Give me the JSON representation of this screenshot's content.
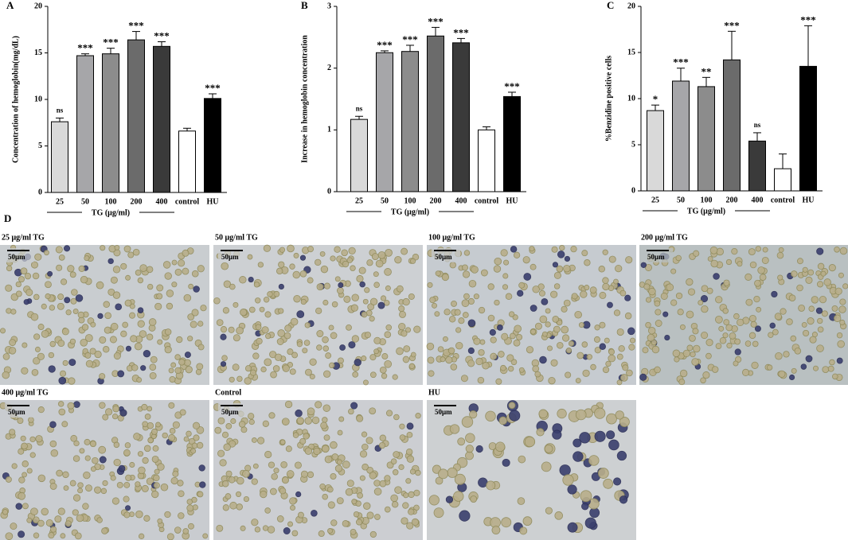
{
  "chart_data": [
    {
      "type": "bar",
      "panel_label": "A",
      "ylabel": "Concentration of hemoglobin(mg/dL)",
      "group_label": "TG (μg/ml)",
      "categories": [
        "25",
        "50",
        "100",
        "200",
        "400",
        "control",
        "HU"
      ],
      "values": [
        7.6,
        14.7,
        14.9,
        16.4,
        15.7,
        6.6,
        10.1
      ],
      "errors": [
        0.4,
        0.2,
        0.6,
        0.9,
        0.5,
        0.3,
        0.5
      ],
      "annotations": [
        "ns",
        "***",
        "***",
        "***",
        "***",
        null,
        "***"
      ],
      "colors": [
        "#d9d9d9",
        "#a6a6a9",
        "#8c8c8c",
        "#6b6b6b",
        "#3a3a3a",
        "#ffffff",
        "#000000"
      ],
      "ylim": [
        0,
        20
      ],
      "yticks": [
        0,
        5,
        10,
        15,
        20
      ]
    },
    {
      "type": "bar",
      "panel_label": "B",
      "ylabel": "Increase in hemoglobin concentration",
      "group_label": "TG (μg/ml)",
      "categories": [
        "25",
        "50",
        "100",
        "200",
        "400",
        "control",
        "HU"
      ],
      "values": [
        1.17,
        2.25,
        2.27,
        2.52,
        2.41,
        1.0,
        1.54
      ],
      "errors": [
        0.05,
        0.03,
        0.1,
        0.14,
        0.07,
        0.05,
        0.07
      ],
      "annotations": [
        "ns",
        "***",
        "***",
        "***",
        "***",
        null,
        "***"
      ],
      "colors": [
        "#d9d9d9",
        "#a6a6a9",
        "#8c8c8c",
        "#6b6b6b",
        "#3a3a3a",
        "#ffffff",
        "#000000"
      ],
      "ylim": [
        0,
        3
      ],
      "yticks": [
        0,
        1,
        2,
        3
      ]
    },
    {
      "type": "bar",
      "panel_label": "C",
      "ylabel": "%Benzidine positive cells",
      "group_label": "TG (μg/ml)",
      "categories": [
        "25",
        "50",
        "100",
        "200",
        "400",
        "control",
        "HU"
      ],
      "values": [
        8.7,
        11.9,
        11.3,
        14.2,
        5.4,
        2.4,
        13.5
      ],
      "errors": [
        0.6,
        1.4,
        1.0,
        3.1,
        0.9,
        1.6,
        4.4
      ],
      "annotations": [
        "*",
        "***",
        "**",
        "***",
        "ns",
        null,
        "***"
      ],
      "colors": [
        "#d9d9d9",
        "#a6a6a9",
        "#8c8c8c",
        "#6b6b6b",
        "#3a3a3a",
        "#ffffff",
        "#000000"
      ],
      "ylim": [
        0,
        20
      ],
      "yticks": [
        0,
        5,
        10,
        15,
        20
      ]
    }
  ],
  "micrographs": {
    "panel_label": "D",
    "panels": [
      {
        "label": "25 μg/ml TG",
        "scale_bar": "50μm"
      },
      {
        "label": "50 μg/ml TG",
        "scale_bar": "50μm"
      },
      {
        "label": "100 μg/ml TG",
        "scale_bar": "50μm"
      },
      {
        "label": "200 μg/ml TG",
        "scale_bar": "50μm"
      },
      {
        "label": "400 μg/ml TG",
        "scale_bar": "50μm"
      },
      {
        "label": "Control",
        "scale_bar": "50μm"
      },
      {
        "label": "HU",
        "scale_bar": "50μm"
      }
    ]
  }
}
